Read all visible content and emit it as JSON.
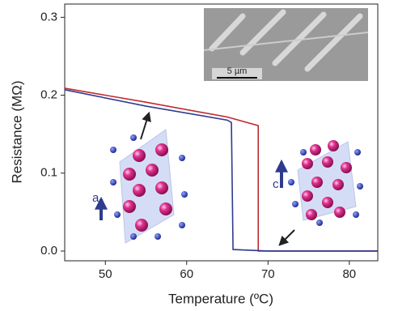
{
  "chart_data": {
    "type": "line",
    "x_label": "Temperature (ºC)",
    "y_label": "Resistance (MΩ)",
    "xlim": [
      45,
      83.5
    ],
    "ylim": [
      -0.0125,
      0.317
    ],
    "xticks": [
      50,
      60,
      70,
      80
    ],
    "yticks": [
      {
        "value": 0,
        "label": "0.0"
      },
      0.1,
      0.2,
      0.3
    ],
    "series": [
      {
        "color": "#c0282d",
        "x": [
          45,
          55,
          65,
          68.8,
          68.8,
          83.5
        ],
        "values": [
          0.209,
          0.191,
          0.172,
          0.161,
          0.0,
          0.0
        ]
      },
      {
        "color": "#2e3b8f",
        "x": [
          45,
          55,
          65,
          65.5,
          65.7,
          70,
          83.5
        ],
        "values": [
          0.207,
          0.186,
          0.168,
          0.165,
          0.002,
          0.0,
          0.0
        ]
      }
    ],
    "annotations": [
      "a",
      "c",
      "5 µm"
    ]
  }
}
